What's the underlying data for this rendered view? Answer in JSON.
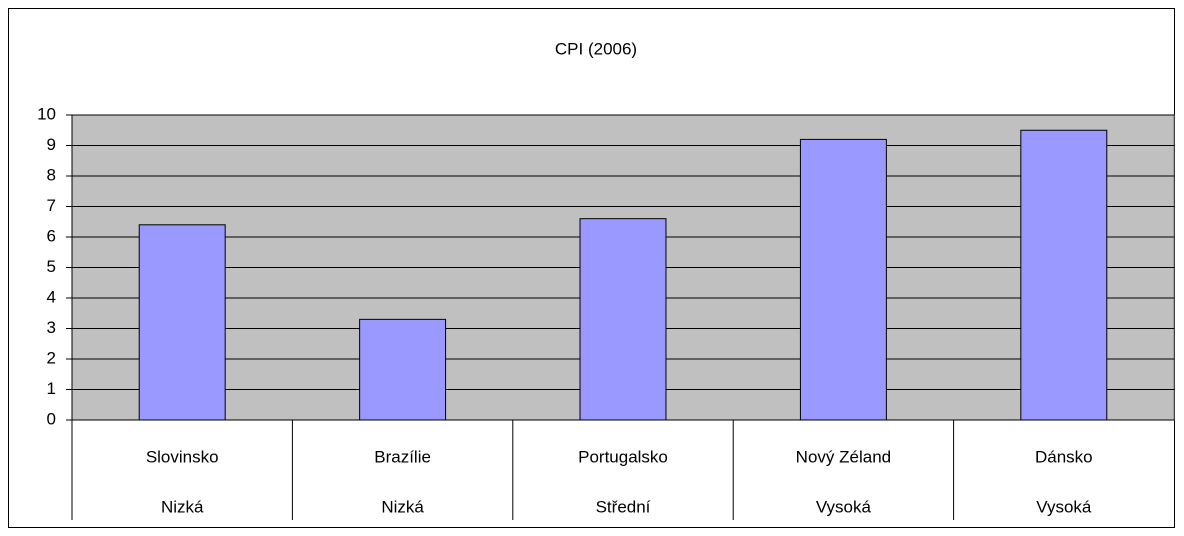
{
  "chart_data": {
    "type": "bar",
    "title": "CPI (2006)",
    "categories": [
      "Slovinsko",
      "Brazílie",
      "Portugalsko",
      "Nový Zéland",
      "Dánsko"
    ],
    "categories2": [
      "Nizká",
      "Nizká",
      "Střední",
      "Vysoká",
      "Vysoká"
    ],
    "values": [
      6.4,
      3.3,
      6.6,
      9.2,
      9.5
    ],
    "color": "#9999ff",
    "plot_background": "#c0c0c0",
    "ylim": [
      0,
      10
    ],
    "yticks": [
      0,
      1,
      2,
      3,
      4,
      5,
      6,
      7,
      8,
      9,
      10
    ],
    "grid": true
  }
}
